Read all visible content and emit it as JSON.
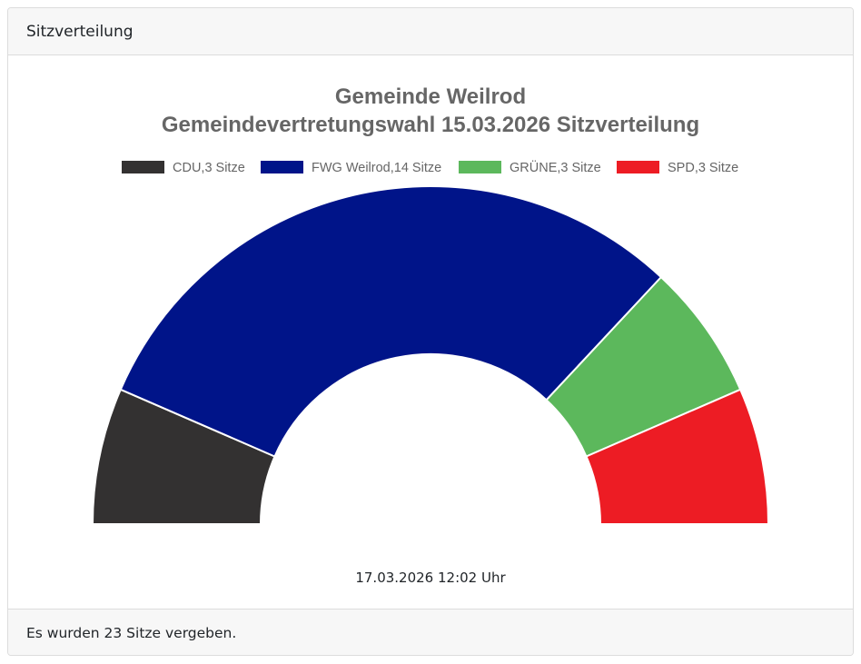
{
  "card": {
    "header": "Sitzverteilung",
    "footer": "Es wurden 23 Sitze vergeben."
  },
  "timestamp": "17.03.2026 12:02 Uhr",
  "chart_data": {
    "type": "doughnut-half",
    "title": [
      "Gemeinde Weilrod",
      "Gemeindevertretungswahl 15.03.2026 Sitzverteilung"
    ],
    "legend_position": "top",
    "categories": [
      "CDU",
      "FWG Weilrod",
      "GRÜNE",
      "SPD"
    ],
    "legend_labels": [
      "CDU,3 Sitze",
      "FWG Weilrod,14 Sitze",
      "GRÜNE,3 Sitze",
      "SPD,3 Sitze"
    ],
    "values": [
      3,
      14,
      3,
      3
    ],
    "colors": [
      "#333131",
      "#001489",
      "#5cb85c",
      "#ed1c24"
    ]
  }
}
